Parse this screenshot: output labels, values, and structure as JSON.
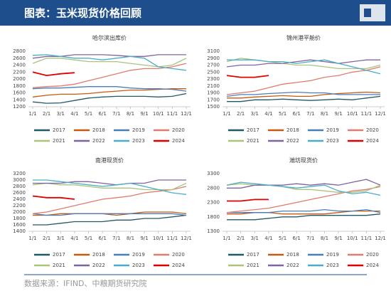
{
  "header": {
    "title": "图表：玉米现货价格回顾"
  },
  "source": "数据来源：IFIND、中粮期货研究院",
  "chart_data": [
    {
      "type": "line",
      "title": "哈尔滨出库价",
      "categories": [
        "1/1",
        "2/1",
        "3/1",
        "4/1",
        "5/1",
        "6/1",
        "7/1",
        "8/1",
        "9/1",
        "10/1",
        "11/1",
        "12/1"
      ],
      "ylim": [
        1200,
        2800
      ],
      "yticks": [
        1200,
        1400,
        1600,
        1800,
        2000,
        2200,
        2400,
        2600,
        2800
      ],
      "series": [
        {
          "name": "2017",
          "color": "#215968",
          "values": [
            1340,
            1300,
            1310,
            1380,
            1450,
            1480,
            1500,
            1500,
            1500,
            1480,
            1500,
            1580
          ]
        },
        {
          "name": "2018",
          "color": "#c55a11",
          "values": [
            1480,
            1530,
            1560,
            1560,
            1580,
            1620,
            1650,
            1680,
            1680,
            1700,
            1720,
            1720
          ]
        },
        {
          "name": "2019",
          "color": "#4a7ebb",
          "values": [
            1720,
            1740,
            1740,
            1760,
            1780,
            1780,
            1780,
            1740,
            1720,
            1720,
            1700,
            1650
          ]
        },
        {
          "name": "2020",
          "color": "#e07b6f",
          "values": [
            1750,
            1780,
            1800,
            1850,
            1950,
            2050,
            2150,
            2250,
            2300,
            2300,
            2350,
            2450
          ]
        },
        {
          "name": "2021",
          "color": "#a9c47f",
          "values": [
            2450,
            2600,
            2600,
            2550,
            2500,
            2500,
            2500,
            2450,
            2400,
            2350,
            2400,
            2600
          ]
        },
        {
          "name": "2022",
          "color": "#8064a2",
          "values": [
            2600,
            2650,
            2650,
            2700,
            2700,
            2700,
            2680,
            2650,
            2650,
            2700,
            2700,
            2700
          ]
        },
        {
          "name": "2023",
          "color": "#4bacc6",
          "values": [
            2680,
            2700,
            2650,
            2600,
            2600,
            2550,
            2600,
            2650,
            2600,
            2350,
            2300,
            2250
          ]
        },
        {
          "name": "2024",
          "color": "#e00000",
          "values": [
            2200,
            2100,
            2150,
            2180,
            null,
            null,
            null,
            null,
            null,
            null,
            null,
            null
          ]
        }
      ]
    },
    {
      "type": "line",
      "title": "锦州港平舱价",
      "categories": [
        "1/1",
        "2/1",
        "3/1",
        "4/1",
        "5/1",
        "6/1",
        "7/1",
        "8/1",
        "9/1",
        "10/1",
        "11/1",
        "12/1"
      ],
      "ylim": [
        1500,
        3100
      ],
      "yticks": [
        1500,
        1700,
        1900,
        2100,
        2300,
        2500,
        2700,
        2900,
        3100
      ],
      "series": [
        {
          "name": "2017",
          "color": "#215968",
          "values": [
            1650,
            1650,
            1700,
            1700,
            1720,
            1700,
            1680,
            1700,
            1720,
            1700,
            1750,
            1800
          ]
        },
        {
          "name": "2018",
          "color": "#c55a11",
          "values": [
            1750,
            1750,
            1780,
            1800,
            1820,
            1800,
            1800,
            1850,
            1880,
            1900,
            1920,
            1900
          ]
        },
        {
          "name": "2019",
          "color": "#4a7ebb",
          "values": [
            1800,
            1850,
            1850,
            1880,
            1900,
            1920,
            1900,
            1900,
            1850,
            1850,
            1850,
            1850
          ]
        },
        {
          "name": "2020",
          "color": "#e07b6f",
          "values": [
            1850,
            1900,
            1950,
            2050,
            2150,
            2200,
            2250,
            2350,
            2400,
            2500,
            2550,
            2650
          ]
        },
        {
          "name": "2021",
          "color": "#a9c47f",
          "values": [
            2800,
            2900,
            2850,
            2800,
            2750,
            2700,
            2700,
            2650,
            2600,
            2600,
            2600,
            2700
          ]
        },
        {
          "name": "2022",
          "color": "#8064a2",
          "values": [
            2650,
            2700,
            2700,
            2750,
            2750,
            2800,
            2850,
            2800,
            2750,
            2800,
            2850,
            2850
          ]
        },
        {
          "name": "2023",
          "color": "#4bacc6",
          "values": [
            2850,
            2850,
            2850,
            2800,
            2800,
            2750,
            2800,
            2850,
            2750,
            2650,
            2550,
            2450
          ]
        },
        {
          "name": "2024",
          "color": "#e00000",
          "values": [
            2400,
            2350,
            2350,
            2400,
            null,
            null,
            null,
            null,
            null,
            null,
            null,
            null
          ]
        }
      ]
    },
    {
      "type": "line",
      "title": "南港现货价",
      "categories": [
        "1/1",
        "2/1",
        "3/1",
        "4/1",
        "5/1",
        "6/1",
        "7/1",
        "8/1",
        "9/1",
        "10/1",
        "11/1",
        "12/1"
      ],
      "ylim": [
        1400,
        3200
      ],
      "yticks": [
        1400,
        1600,
        1800,
        2000,
        2200,
        2400,
        2600,
        2800,
        3000,
        3200
      ],
      "series": [
        {
          "name": "2017",
          "color": "#215968",
          "values": [
            1600,
            1600,
            1650,
            1700,
            1700,
            1700,
            1750,
            1750,
            1800,
            1800,
            1850,
            1900
          ]
        },
        {
          "name": "2018",
          "color": "#c55a11",
          "values": [
            1900,
            1900,
            1950,
            1950,
            1950,
            1950,
            1900,
            1950,
            2000,
            2000,
            2000,
            1950
          ]
        },
        {
          "name": "2019",
          "color": "#4a7ebb",
          "values": [
            1950,
            1900,
            1900,
            1950,
            1950,
            1950,
            1950,
            1950,
            1950,
            1950,
            1950,
            1900
          ]
        },
        {
          "name": "2020",
          "color": "#e07b6f",
          "values": [
            1950,
            2000,
            2100,
            2200,
            2300,
            2400,
            2450,
            2500,
            2600,
            2650,
            2700,
            2800
          ]
        },
        {
          "name": "2021",
          "color": "#a9c47f",
          "values": [
            2850,
            2900,
            2850,
            2850,
            2800,
            2750,
            2750,
            2750,
            2700,
            2700,
            2700,
            2900
          ]
        },
        {
          "name": "2022",
          "color": "#8064a2",
          "values": [
            2900,
            2900,
            2900,
            2950,
            2950,
            2900,
            2850,
            2900,
            2900,
            3000,
            3000,
            3000
          ]
        },
        {
          "name": "2023",
          "color": "#4bacc6",
          "values": [
            3000,
            3000,
            2950,
            2900,
            2850,
            2800,
            2850,
            2900,
            2800,
            2700,
            2600,
            2550
          ]
        },
        {
          "name": "2024",
          "color": "#e00000",
          "values": [
            2500,
            2450,
            2450,
            2400,
            null,
            null,
            null,
            null,
            null,
            null,
            null,
            null
          ]
        }
      ]
    },
    {
      "type": "line",
      "title": "潍坊现货价",
      "categories": [
        "1/1",
        "2/1",
        "3/1",
        "4/1",
        "5/1",
        "6/1",
        "7/1",
        "8/1",
        "9/1",
        "10/1",
        "11/1",
        "12/1"
      ],
      "ylim": [
        1300,
        3300
      ],
      "yticks": [
        1300,
        1800,
        2300,
        2800,
        3300
      ],
      "series": [
        {
          "name": "2017",
          "color": "#215968",
          "values": [
            1700,
            1700,
            1700,
            1750,
            1800,
            1800,
            1850,
            1850,
            1850,
            1850,
            1850,
            1900
          ]
        },
        {
          "name": "2018",
          "color": "#c55a11",
          "values": [
            1900,
            1900,
            1950,
            1950,
            1900,
            1900,
            1900,
            1900,
            1950,
            2000,
            2000,
            2000
          ]
        },
        {
          "name": "2019",
          "color": "#4a7ebb",
          "values": [
            1950,
            1950,
            1950,
            1950,
            2000,
            2000,
            2000,
            2050,
            2000,
            2000,
            2050,
            1950
          ]
        },
        {
          "name": "2020",
          "color": "#e07b6f",
          "values": [
            1950,
            2000,
            2050,
            2100,
            2200,
            2300,
            2400,
            2500,
            2600,
            2700,
            2750,
            2850
          ]
        },
        {
          "name": "2021",
          "color": "#a9c47f",
          "values": [
            2900,
            2950,
            2900,
            2900,
            2850,
            2750,
            2750,
            2700,
            2650,
            2650,
            2700,
            2900
          ]
        },
        {
          "name": "2022",
          "color": "#8064a2",
          "values": [
            2800,
            2800,
            2900,
            2900,
            2900,
            2950,
            2900,
            2950,
            2900,
            3000,
            3100,
            2900
          ]
        },
        {
          "name": "2023",
          "color": "#4bacc6",
          "values": [
            2900,
            3000,
            2950,
            2900,
            2850,
            2800,
            2850,
            2900,
            2700,
            2600,
            2650,
            2550
          ]
        },
        {
          "name": "2024",
          "color": "#e00000",
          "values": [
            2350,
            2350,
            2400,
            2400,
            null,
            null,
            null,
            null,
            null,
            null,
            null,
            null
          ]
        }
      ]
    }
  ]
}
